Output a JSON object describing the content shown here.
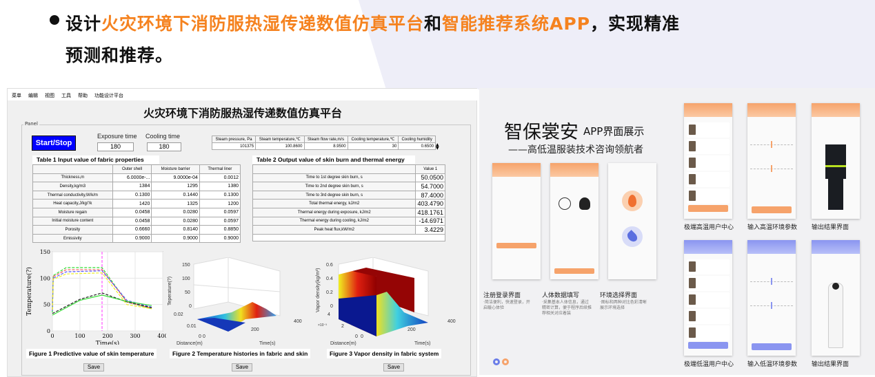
{
  "headline": {
    "line1_pre": "设计",
    "line1_hl1": "火灾环境下消防服热湿传递数值仿真平台",
    "line1_mid": "和",
    "line1_hl2": "智能推荐系统APP",
    "line1_post": "，实现精准",
    "line2": "预测和推荐。",
    "accent": "#f5821f"
  },
  "app": {
    "menu": [
      "菜单",
      "编辑",
      "视图",
      "工具",
      "帮助",
      "功能设计平台"
    ],
    "title": "火灾环境下消防服热湿传递数值仿真平台",
    "panel_label": "Panel",
    "start_stop": "Start/Stop",
    "exposure_label": "Exposure time",
    "exposure_value": "180",
    "cooling_label": "Cooling time",
    "cooling_value": "180",
    "steam": {
      "headers": [
        "Steam pressure, Pa",
        "Steam temperature,℃",
        "Steam flow rate,m/s",
        "Cooling temperature,℃",
        "Cooling humidity"
      ],
      "values": [
        "101375",
        "100.8600",
        "8.9500",
        "30",
        "0.6500"
      ]
    },
    "table1": {
      "title": "Table 1 Input value of fabric properties",
      "headers": [
        "",
        "Outer shell",
        "Moisture barrier",
        "Thermal liner"
      ],
      "rows": [
        [
          "Thickness,m",
          "6.0000e-...",
          "9.0000e-04",
          "0.0012"
        ],
        [
          "Density,kg/m3",
          "1384",
          "1295",
          "1380"
        ],
        [
          "Thermal conductivity,W/k/m",
          "0.1300",
          "0.1440",
          "0.1300"
        ],
        [
          "Heat capacity,J/kg/'/k",
          "1420",
          "1325",
          "1200"
        ],
        [
          "Moisture regain",
          "0.0458",
          "0.0280",
          "0.0597"
        ],
        [
          "Initial moisture content",
          "0.0458",
          "0.0280",
          "0.0597"
        ],
        [
          "Porosity",
          "0.6660",
          "0.8140",
          "0.8850"
        ],
        [
          "Emissivity",
          "0.9000",
          "0.9000",
          "0.9000"
        ]
      ]
    },
    "table2": {
      "title": "Table 2 Output value of skin burn and thermal energy",
      "header": "Value 1",
      "rows": [
        [
          "Time to 1st degree skin burn, s",
          "50.0500"
        ],
        [
          "Time to 2nd degree skin burn, s",
          "54.7000"
        ],
        [
          "Time to 3rd degree skin burn, s",
          "87.4000"
        ],
        [
          "Total thermal energy, kJ/m2",
          "403.4790"
        ],
        [
          "Thermal energy during exposure, kJ/m2",
          "418.1761"
        ],
        [
          "Thermal energy during cooling, kJ/m2",
          "-14.6971"
        ],
        [
          "Peak heat flux,kW/m2",
          "3.4229"
        ]
      ]
    },
    "fig1_caption": "Figure 1 Predictive value of skin temperature",
    "fig2_caption": "Figure 2 Temperature histories in fabric and skin",
    "fig3_caption": "Figure 3 Vapor density in fabric system",
    "fig2": {
      "zlabel": "Teperature(?)",
      "xlabel": "Distance(m)",
      "ylabel": "Time(s)",
      "zticks": [
        "150",
        "100",
        "50",
        "0"
      ],
      "xticks": [
        "0.02",
        "0.01",
        "0"
      ],
      "yticks": [
        "0",
        "200",
        "400"
      ]
    },
    "fig3": {
      "zlabel": "Vapor density(kg/m³)",
      "xlabel": "Distance(m)",
      "ylabel": "Time(s)",
      "zticks": [
        "0.6",
        "0.4",
        "0.2",
        "0"
      ],
      "xticks": [
        "4",
        "2",
        "0"
      ],
      "xexp": "×10⁻³",
      "yticks": [
        "0",
        "200",
        "400"
      ]
    },
    "save": "Save"
  },
  "chart_data": {
    "type": "line",
    "xlabel": "Time(s)",
    "ylabel": "Temperature(?)",
    "xlim": [
      0,
      400
    ],
    "ylim": [
      0,
      150
    ],
    "xticks": [
      "0",
      "100",
      "200",
      "300",
      "400"
    ],
    "yticks": [
      "0",
      "50",
      "100",
      "150"
    ],
    "grid": true,
    "vline_x": 180,
    "series": [
      {
        "color": "#33dd33",
        "style": "dashed",
        "points": [
          [
            0,
            35
          ],
          [
            3,
            105
          ],
          [
            50,
            120
          ],
          [
            180,
            120
          ],
          [
            270,
            55
          ],
          [
            360,
            42
          ]
        ]
      },
      {
        "color": "#ff5555",
        "style": "dashed",
        "points": [
          [
            0,
            40
          ],
          [
            3,
            103
          ],
          [
            50,
            116
          ],
          [
            180,
            116
          ],
          [
            270,
            55
          ],
          [
            360,
            43
          ]
        ]
      },
      {
        "color": "#5555ff",
        "style": "dashed",
        "points": [
          [
            0,
            38
          ],
          [
            3,
            100
          ],
          [
            50,
            112
          ],
          [
            180,
            114
          ],
          [
            270,
            58
          ],
          [
            360,
            45
          ]
        ]
      },
      {
        "color": "#eeee22",
        "style": "dashed",
        "points": [
          [
            0,
            40
          ],
          [
            3,
            98
          ],
          [
            50,
            108
          ],
          [
            180,
            110
          ],
          [
            270,
            50
          ],
          [
            360,
            42
          ]
        ]
      },
      {
        "color": "#222222",
        "style": "dashed",
        "points": [
          [
            0,
            33
          ],
          [
            100,
            60
          ],
          [
            180,
            72
          ],
          [
            270,
            55
          ],
          [
            360,
            44
          ]
        ]
      },
      {
        "color": "#33dd33",
        "style": "solid",
        "points": [
          [
            0,
            30
          ],
          [
            100,
            58
          ],
          [
            180,
            68
          ],
          [
            270,
            56
          ],
          [
            360,
            48
          ]
        ]
      }
    ]
  },
  "showcase": {
    "brand": "智保裳安",
    "title": "APP界面展示",
    "subtitle": "——高低温服装技术咨询领航者",
    "screens": [
      {
        "caption": "注册登录界面",
        "desc": "·简洁便利，快速登录，开启暖心体验"
      },
      {
        "caption": "人体数据填写",
        "desc": "·采集基本人体信息，通过精密计算，便于程序后续推荐相关对应着装"
      },
      {
        "caption": "环境选择界面",
        "desc": "·图标和两种对比色彩清晰展示环境选择"
      },
      {
        "caption": "极端高温用户中心"
      },
      {
        "caption": "输入高温环境参数"
      },
      {
        "caption": "输出结果界面"
      },
      {
        "caption": "极端低温用户中心"
      },
      {
        "caption": "输入低温环境参数"
      },
      {
        "caption": "输出结果界面"
      }
    ],
    "orange": "#f6a36b",
    "blue": "#8a95f0"
  }
}
